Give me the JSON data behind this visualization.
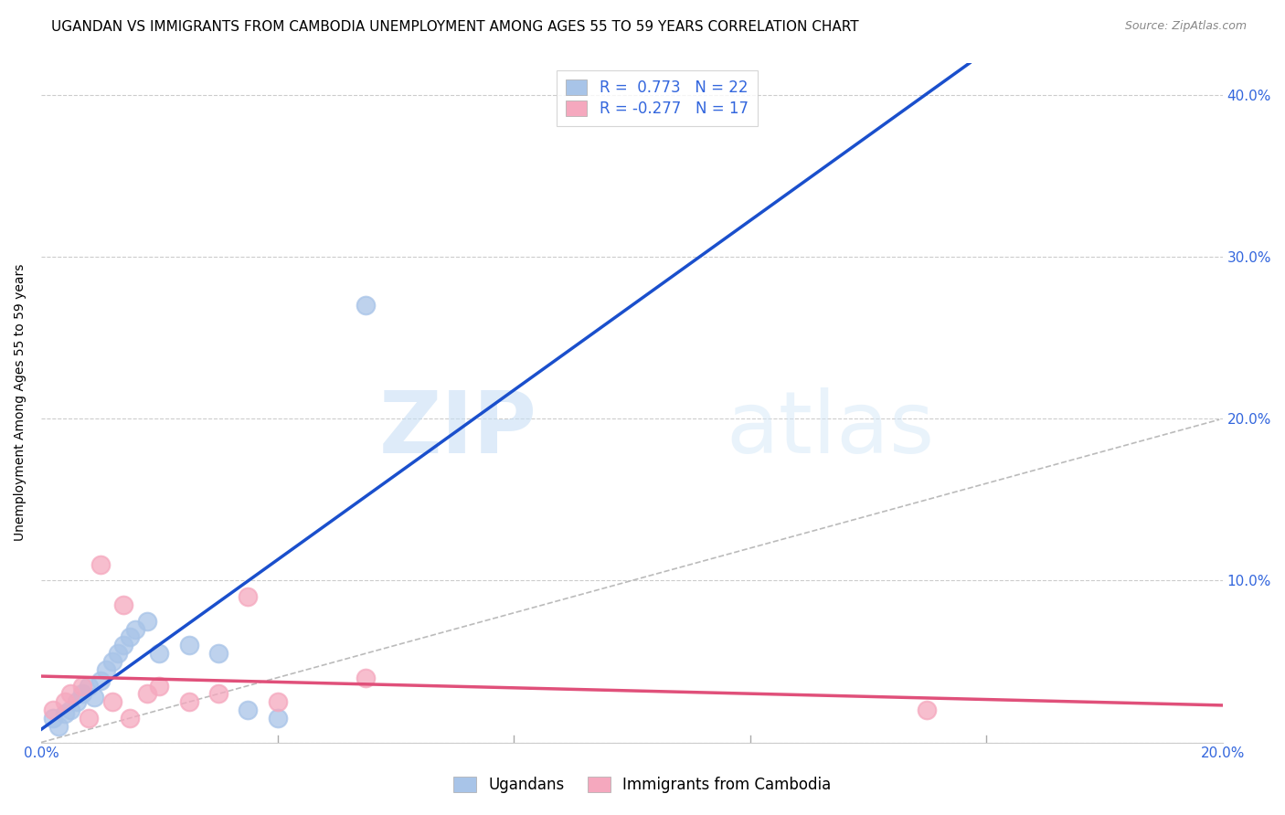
{
  "title": "UGANDAN VS IMMIGRANTS FROM CAMBODIA UNEMPLOYMENT AMONG AGES 55 TO 59 YEARS CORRELATION CHART",
  "source": "Source: ZipAtlas.com",
  "ylabel": "Unemployment Among Ages 55 to 59 years",
  "xlim": [
    0.0,
    0.2
  ],
  "ylim": [
    0.0,
    0.42
  ],
  "xticks": [
    0.0,
    0.04,
    0.08,
    0.12,
    0.16,
    0.2
  ],
  "yticks": [
    0.0,
    0.1,
    0.2,
    0.3,
    0.4
  ],
  "ytick_labels": [
    "",
    "10.0%",
    "20.0%",
    "30.0%",
    "40.0%"
  ],
  "xtick_labels": [
    "0.0%",
    "",
    "",
    "",
    "",
    "20.0%"
  ],
  "ugandan_R": 0.773,
  "ugandan_N": 22,
  "cambodia_R": -0.277,
  "cambodia_N": 17,
  "ugandan_color": "#a8c4e8",
  "ugandan_line_color": "#1a4fcc",
  "cambodia_color": "#f5a8be",
  "cambodia_line_color": "#e0507a",
  "diagonal_color": "#bbbbbb",
  "ugandan_x": [
    0.002,
    0.003,
    0.004,
    0.005,
    0.006,
    0.007,
    0.008,
    0.009,
    0.01,
    0.011,
    0.012,
    0.013,
    0.014,
    0.015,
    0.016,
    0.018,
    0.02,
    0.025,
    0.03,
    0.035,
    0.04,
    0.055
  ],
  "ugandan_y": [
    0.015,
    0.01,
    0.018,
    0.02,
    0.025,
    0.03,
    0.035,
    0.028,
    0.038,
    0.045,
    0.05,
    0.055,
    0.06,
    0.065,
    0.07,
    0.075,
    0.055,
    0.06,
    0.055,
    0.02,
    0.015,
    0.27
  ],
  "cambodia_x": [
    0.002,
    0.004,
    0.005,
    0.007,
    0.008,
    0.01,
    0.012,
    0.014,
    0.015,
    0.018,
    0.02,
    0.025,
    0.03,
    0.035,
    0.04,
    0.055,
    0.15
  ],
  "cambodia_y": [
    0.02,
    0.025,
    0.03,
    0.035,
    0.015,
    0.11,
    0.025,
    0.085,
    0.015,
    0.03,
    0.035,
    0.025,
    0.03,
    0.09,
    0.025,
    0.04,
    0.02
  ],
  "watermark_zip": "ZIP",
  "watermark_atlas": "atlas",
  "legend_label_1": "R =  0.773   N = 22",
  "legend_label_2": "R = -0.277   N = 17",
  "bottom_legend_labels": [
    "Ugandans",
    "Immigrants from Cambodia"
  ],
  "title_fontsize": 11,
  "axis_label_fontsize": 10,
  "tick_fontsize": 11,
  "source_fontsize": 9,
  "legend_fontsize": 12,
  "right_ytick_color": "#3366dd",
  "bottom_xtick_color": "#3366dd"
}
